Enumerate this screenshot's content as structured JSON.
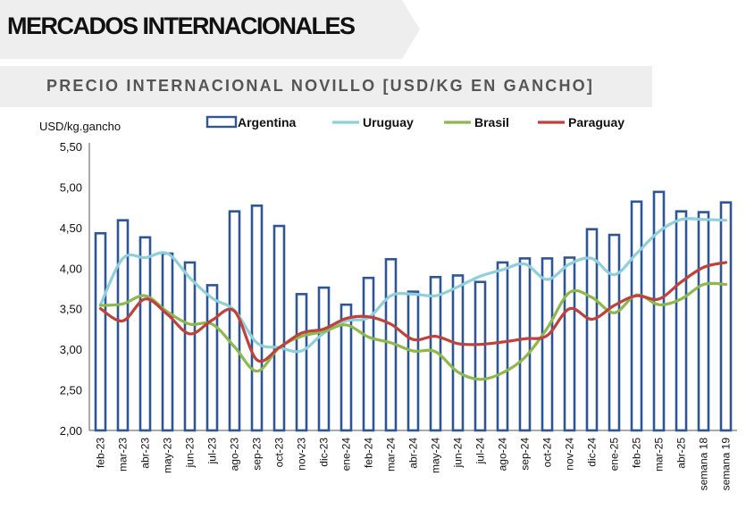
{
  "header": {
    "title": "MERCADOS INTERNACIONALES",
    "band_color": "#eeeeee"
  },
  "subtitle": "PRECIO INTERNACIONAL NOVILLO [USD/KG EN GANCHO]",
  "chart_data": {
    "type": "bar",
    "title": "PRECIO INTERNACIONAL NOVILLO [USD/KG EN GANCHO]",
    "ylabel": "USD/kg.gancho",
    "xlabel": "",
    "ylim": [
      2.0,
      5.5
    ],
    "yticks": [
      "2,00",
      "2,50",
      "3,00",
      "3,50",
      "4,00",
      "4,50",
      "5,00",
      "5,50"
    ],
    "grid": false,
    "legend_position": "top",
    "categories": [
      "feb-23",
      "mar-23",
      "abr-23",
      "may-23",
      "jun-23",
      "jul-23",
      "ago-23",
      "sep-23",
      "oct-23",
      "nov-23",
      "dic-23",
      "ene-24",
      "feb-24",
      "mar-24",
      "abr-24",
      "may-24",
      "jun-24",
      "jul-24",
      "ago-24",
      "sep-24",
      "oct-24",
      "nov-24",
      "dic-24",
      "ene-25",
      "feb-25",
      "mar-25",
      "abr-25",
      "semana 18",
      "semana 19"
    ],
    "series": [
      {
        "name": "Argentina",
        "type": "bar",
        "color": "#2e5596",
        "values": [
          4.43,
          4.59,
          4.38,
          4.18,
          4.07,
          3.79,
          4.7,
          4.77,
          4.52,
          3.68,
          3.76,
          3.55,
          3.88,
          4.11,
          3.71,
          3.89,
          3.91,
          3.83,
          4.07,
          4.12,
          4.12,
          4.13,
          4.48,
          4.41,
          4.82,
          4.94,
          4.7,
          4.69,
          4.81
        ]
      },
      {
        "name": "Uruguay",
        "type": "line",
        "color": "#8fcfdc",
        "values": [
          3.55,
          4.12,
          4.13,
          4.18,
          3.88,
          3.63,
          3.48,
          3.08,
          3.02,
          2.98,
          3.2,
          3.35,
          3.39,
          3.66,
          3.68,
          3.66,
          3.77,
          3.9,
          3.98,
          4.05,
          3.86,
          4.05,
          4.12,
          3.92,
          4.18,
          4.45,
          4.6,
          4.6,
          4.59
        ]
      },
      {
        "name": "Brasil",
        "type": "line",
        "color": "#8cb84c",
        "values": [
          3.54,
          3.56,
          3.66,
          3.46,
          3.31,
          3.31,
          3.03,
          2.73,
          3.02,
          3.16,
          3.22,
          3.3,
          3.15,
          3.08,
          2.98,
          2.97,
          2.72,
          2.63,
          2.71,
          2.9,
          3.26,
          3.7,
          3.64,
          3.45,
          3.67,
          3.55,
          3.62,
          3.8,
          3.8
        ]
      },
      {
        "name": "Paraguay",
        "type": "line",
        "color": "#c0403a",
        "values": [
          3.5,
          3.35,
          3.62,
          3.43,
          3.19,
          3.36,
          3.47,
          2.87,
          3.02,
          3.2,
          3.25,
          3.38,
          3.4,
          3.31,
          3.12,
          3.16,
          3.07,
          3.06,
          3.09,
          3.13,
          3.17,
          3.5,
          3.37,
          3.54,
          3.66,
          3.62,
          3.83,
          4.01,
          4.07
        ]
      }
    ]
  }
}
